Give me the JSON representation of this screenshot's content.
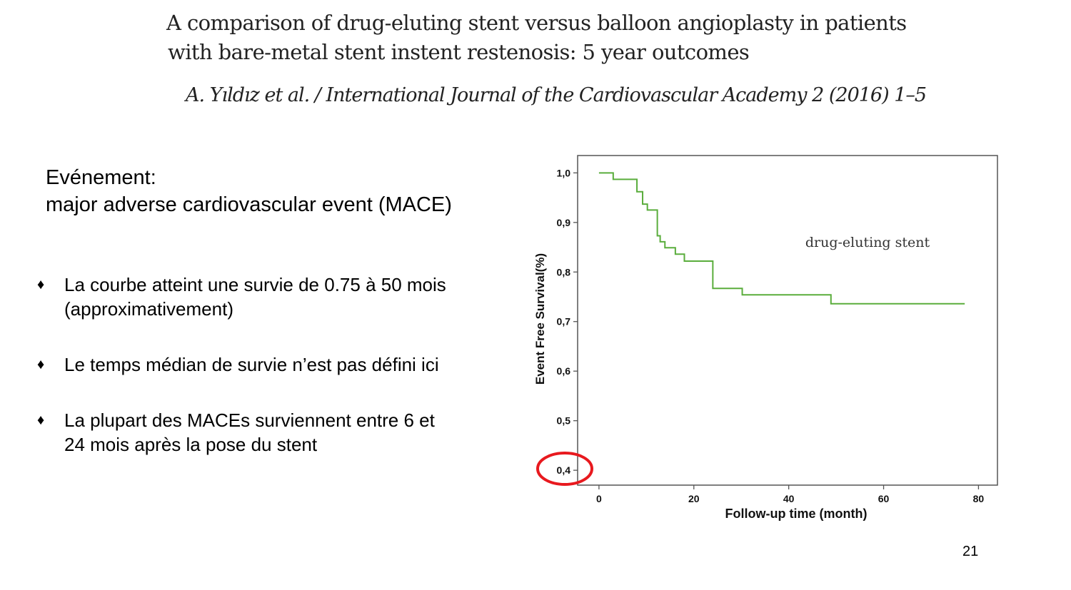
{
  "slide": {
    "title_line1": "A comparison of drug-eluting stent versus balloon angioplasty in patients",
    "title_line2": "with bare-metal stent instent restenosis: 5 year outcomes",
    "citation": "A. Yıldız et al. / International Journal of the Cardiovascular Academy 2 (2016) 1–5",
    "event_line1": "Evénement:",
    "event_line2": "major adverse cardiovascular event (MACE)",
    "bullets": [
      {
        "line1": "La courbe atteint une survie de 0.75 à 50 mois",
        "line2": "(approximativement)"
      },
      {
        "line1": "Le temps médian de survie n’est pas défini ici",
        "line2": ""
      },
      {
        "line1": "La plupart des MACEs surviennent entre 6 et",
        "line2": "24 mois après la pose du stent"
      }
    ],
    "bullet_glyph": "♦",
    "page_number": "21"
  },
  "chart_data": {
    "type": "line",
    "step": true,
    "xlabel": "Follow-up time (month)",
    "ylabel": "Event Free Survival(%)",
    "xlim": [
      -4.5,
      84
    ],
    "ylim": [
      0.37,
      1.035
    ],
    "xticks": [
      "0",
      "20",
      "40",
      "60",
      "80"
    ],
    "xtick_values": [
      0,
      20,
      40,
      60,
      80
    ],
    "yticks": [
      "1,0",
      "0,9",
      "0,8",
      "0,7",
      "0,6",
      "0,5",
      "0,4"
    ],
    "ytick_values": [
      1.0,
      0.9,
      0.8,
      0.7,
      0.6,
      0.5,
      0.4
    ],
    "grid": false,
    "annotation": "drug-eluting stent",
    "highlight": {
      "label": "0,4",
      "color": "#e8191e"
    },
    "series": [
      {
        "color": "#5aad3c",
        "x": [
          0,
          3.0,
          8.0,
          9.2,
          10.2,
          12.3,
          12.9,
          13.9,
          16.1,
          18.0,
          24.0,
          30.2,
          48.9,
          77.1
        ],
        "y": [
          1.0,
          0.987,
          0.962,
          0.937,
          0.925,
          0.873,
          0.861,
          0.849,
          0.836,
          0.822,
          0.767,
          0.754,
          0.736,
          0.736
        ]
      }
    ]
  }
}
